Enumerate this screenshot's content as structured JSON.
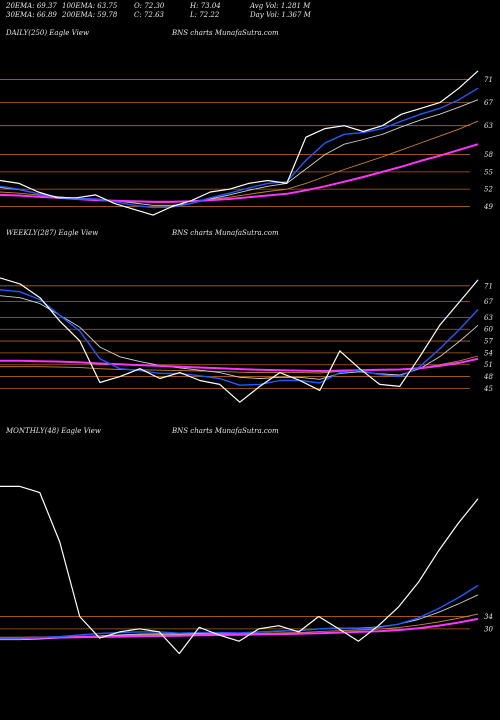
{
  "stats": {
    "ema20": "20EMA: 69.37",
    "ema100": "100EMA: 63.75",
    "open": "O: 72.30",
    "high": "H: 73.04",
    "avgvol": "Avg Vol: 1.281 M",
    "ema30": "30EMA: 66.89",
    "ema200": "200EMA: 59.78",
    "close": "C: 72.63",
    "low": "L: 72.22",
    "dayvol": "Day Vol: 1.367 M"
  },
  "colors": {
    "background": "#000000",
    "price": "#ffffff",
    "grid": "#b8621b",
    "ema_short": "#1e5bff",
    "ema_long": "#ff33ff",
    "ema_mid": "#cfcfcf",
    "ema_warm": "#c8832a"
  },
  "chart_data": [
    {
      "type": "line",
      "title": "DAILY(250) Eagle  View",
      "watermark": "BNS charts MunafaSutra.com",
      "yticks": [
        "71",
        "67",
        "63",
        "58",
        "55",
        "52",
        "49"
      ],
      "ylim": [
        47,
        73
      ],
      "x": [
        0,
        10,
        20,
        30,
        40,
        50,
        60,
        70,
        80,
        90,
        100,
        110,
        120,
        130,
        140,
        150,
        160,
        170,
        180,
        190,
        200,
        210,
        220,
        230,
        240,
        250
      ],
      "series": [
        {
          "role": "price",
          "values": [
            53.5,
            53.0,
            51.5,
            50.5,
            50.5,
            51.0,
            49.5,
            48.5,
            47.5,
            49.0,
            50.0,
            51.5,
            52.0,
            53.0,
            53.5,
            53.0,
            61.0,
            62.5,
            63.0,
            62.0,
            63.0,
            65.0,
            66.0,
            67.0,
            69.5,
            72.5
          ]
        },
        {
          "role": "ema20",
          "values": [
            52.5,
            52.0,
            51.2,
            50.5,
            50.3,
            50.3,
            49.8,
            49.2,
            48.8,
            48.9,
            49.5,
            50.5,
            51.3,
            52.2,
            53.0,
            53.3,
            57.0,
            60.0,
            61.5,
            61.8,
            62.5,
            63.8,
            65.0,
            66.0,
            67.5,
            69.5
          ]
        },
        {
          "role": "ema30",
          "values": [
            52.3,
            51.9,
            51.2,
            50.7,
            50.4,
            50.3,
            50.0,
            49.6,
            49.2,
            49.2,
            49.5,
            50.3,
            51.0,
            51.8,
            52.5,
            53.0,
            55.5,
            58.0,
            59.8,
            60.6,
            61.5,
            62.8,
            64.0,
            65.0,
            66.2,
            67.5
          ]
        },
        {
          "role": "ema100",
          "values": [
            51.5,
            51.3,
            51.0,
            50.7,
            50.4,
            50.2,
            50.0,
            49.8,
            49.7,
            49.7,
            49.9,
            50.2,
            50.6,
            51.1,
            51.6,
            52.0,
            53.0,
            54.2,
            55.4,
            56.5,
            57.6,
            58.8,
            60.0,
            61.2,
            62.4,
            63.8
          ]
        },
        {
          "role": "ema200",
          "values": [
            51.0,
            50.9,
            50.7,
            50.5,
            50.3,
            50.1,
            50.0,
            49.9,
            49.8,
            49.8,
            49.9,
            50.1,
            50.3,
            50.6,
            50.9,
            51.2,
            51.8,
            52.5,
            53.3,
            54.1,
            55.0,
            55.9,
            56.9,
            57.8,
            58.8,
            59.8
          ]
        }
      ]
    },
    {
      "type": "line",
      "title": "WEEKLY(287) Eagle  View",
      "watermark": "BNS charts MunafaSutra.com",
      "yticks": [
        "71",
        "67",
        "63",
        "60",
        "57",
        "54",
        "51",
        "48",
        "45"
      ],
      "ylim": [
        38,
        74
      ],
      "x": [
        0,
        12,
        24,
        36,
        48,
        60,
        72,
        84,
        96,
        108,
        120,
        132,
        144,
        156,
        168,
        180,
        192,
        204,
        216,
        228,
        240,
        252,
        264,
        276,
        287
      ],
      "series": [
        {
          "role": "price",
          "values": [
            73.0,
            71.5,
            68.0,
            62.0,
            57.0,
            46.5,
            48.0,
            50.0,
            47.5,
            49.0,
            47.0,
            46.0,
            41.5,
            45.5,
            49.0,
            47.0,
            44.5,
            54.5,
            50.0,
            46.0,
            45.5,
            53.0,
            61.0,
            67.0,
            72.5
          ]
        },
        {
          "role": "ema20",
          "values": [
            70.0,
            69.5,
            67.5,
            63.5,
            59.5,
            52.5,
            50.0,
            49.5,
            48.8,
            48.8,
            48.2,
            47.5,
            45.8,
            46.0,
            47.0,
            47.0,
            46.4,
            49.0,
            49.5,
            48.5,
            48.0,
            50.5,
            55.0,
            60.0,
            65.0
          ]
        },
        {
          "role": "ema30",
          "values": [
            68.5,
            68.0,
            66.5,
            63.5,
            60.5,
            55.5,
            53.0,
            51.8,
            50.8,
            50.2,
            49.6,
            49.0,
            47.8,
            47.5,
            47.8,
            47.8,
            47.3,
            48.8,
            49.2,
            48.7,
            48.4,
            50.0,
            53.0,
            57.0,
            61.0
          ]
        },
        {
          "role": "ema100",
          "values": [
            50.5,
            50.5,
            50.5,
            50.4,
            50.3,
            50.0,
            49.8,
            49.7,
            49.6,
            49.5,
            49.4,
            49.3,
            49.1,
            49.0,
            49.0,
            49.0,
            48.9,
            49.3,
            49.5,
            49.6,
            49.7,
            50.2,
            51.0,
            52.0,
            53.2
          ]
        },
        {
          "role": "ema200",
          "values": [
            52.0,
            52.0,
            51.9,
            51.8,
            51.6,
            51.3,
            51.1,
            50.9,
            50.7,
            50.5,
            50.3,
            50.1,
            49.9,
            49.7,
            49.6,
            49.5,
            49.4,
            49.5,
            49.6,
            49.7,
            49.8,
            50.1,
            50.7,
            51.5,
            52.5
          ]
        }
      ]
    },
    {
      "type": "line",
      "title": "MONTHLY(48) Eagle  View",
      "watermark": "BNS charts MunafaSutra.com",
      "yticks": [
        "34",
        "30"
      ],
      "ylim": [
        18,
        80
      ],
      "x": [
        0,
        2,
        4,
        6,
        8,
        10,
        12,
        14,
        16,
        18,
        20,
        22,
        24,
        26,
        28,
        30,
        32,
        34,
        36,
        38,
        40,
        42,
        44,
        46,
        48
      ],
      "series": [
        {
          "role": "price",
          "values": [
            76.0,
            76.0,
            74.0,
            58.0,
            34.0,
            27.0,
            29.0,
            30.0,
            29.0,
            22.0,
            30.5,
            28.0,
            26.0,
            30.0,
            31.0,
            29.0,
            34.0,
            30.0,
            26.0,
            31.0,
            37.0,
            45.0,
            55.0,
            64.0,
            72.0
          ]
        },
        {
          "role": "ema20",
          "values": [
            27.0,
            27.0,
            27.2,
            27.5,
            28.0,
            28.5,
            28.8,
            29.0,
            29.0,
            28.6,
            28.8,
            28.8,
            28.7,
            29.0,
            29.3,
            29.4,
            30.0,
            30.3,
            30.0,
            30.4,
            31.5,
            33.5,
            36.5,
            40.0,
            44.0
          ]
        },
        {
          "role": "ema30",
          "values": [
            26.5,
            26.5,
            26.7,
            27.0,
            27.3,
            27.7,
            28.0,
            28.3,
            28.4,
            28.3,
            28.5,
            28.6,
            28.6,
            28.9,
            29.2,
            29.4,
            29.9,
            30.3,
            30.2,
            30.6,
            31.5,
            33.0,
            35.3,
            38.0,
            41.0
          ]
        },
        {
          "role": "ema100",
          "values": [
            27.3,
            27.3,
            27.4,
            27.5,
            27.6,
            27.7,
            27.8,
            28.0,
            28.1,
            28.1,
            28.2,
            28.3,
            28.4,
            28.5,
            28.7,
            28.8,
            29.1,
            29.4,
            29.6,
            29.9,
            30.4,
            31.2,
            32.2,
            33.4,
            34.8
          ]
        },
        {
          "role": "ema200",
          "values": [
            27.0,
            27.0,
            27.1,
            27.2,
            27.3,
            27.4,
            27.5,
            27.6,
            27.7,
            27.8,
            27.9,
            28.0,
            28.1,
            28.2,
            28.3,
            28.4,
            28.6,
            28.8,
            29.0,
            29.2,
            29.6,
            30.2,
            31.0,
            32.0,
            33.2
          ]
        }
      ]
    }
  ]
}
